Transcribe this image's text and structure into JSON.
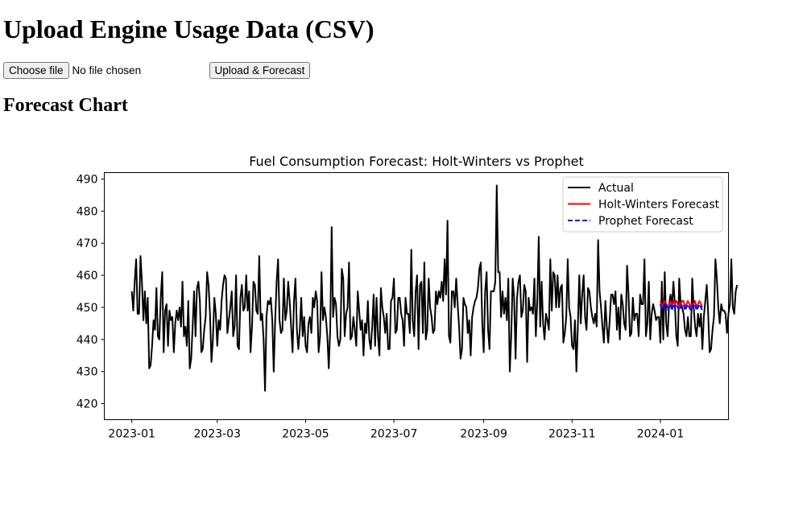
{
  "page": {
    "title": "Upload Engine Usage Data (CSV)",
    "choose_file_label": "Choose file",
    "file_status": "No file chosen",
    "upload_button_label": "Upload & Forecast",
    "section_title": "Forecast Chart"
  },
  "colors": {
    "actual": "#000000",
    "holt_winters": "#ff0000",
    "prophet": "#0000ff"
  },
  "chart_data": {
    "type": "line",
    "title": "Fuel Consumption Forecast: Holt-Winters vs Prophet",
    "xlabel": "",
    "ylabel": "",
    "x_type": "date",
    "xlim": [
      "2022-12-13",
      "2024-02-17"
    ],
    "ylim": [
      415,
      492
    ],
    "x_ticks": [
      "2023-01",
      "2023-03",
      "2023-05",
      "2023-07",
      "2023-09",
      "2023-11",
      "2024-01"
    ],
    "y_ticks": [
      420,
      430,
      440,
      450,
      460,
      470,
      480,
      490
    ],
    "legend_position": "top-right",
    "grid": false,
    "series": [
      {
        "name": "Actual",
        "style": "solid",
        "start": "2023-01-01",
        "step_days": 1,
        "values": [
          455,
          449,
          458,
          465,
          448,
          448,
          466,
          458,
          446,
          455,
          445,
          453,
          431,
          432,
          438,
          446,
          443,
          456,
          441,
          440,
          453,
          461,
          436,
          449,
          451,
          438,
          449,
          446,
          447,
          436,
          445,
          449,
          446,
          450,
          444,
          458,
          441,
          444,
          438,
          452,
          431,
          434,
          444,
          455,
          441,
          456,
          458,
          452,
          436,
          437,
          443,
          447,
          461,
          457,
          448,
          433,
          440,
          453,
          448,
          438,
          446,
          443,
          452,
          457,
          460,
          459,
          442,
          446,
          450,
          455,
          441,
          444,
          460,
          438,
          437,
          453,
          457,
          449,
          450,
          460,
          449,
          455,
          436,
          444,
          458,
          457,
          449,
          448,
          466,
          446,
          448,
          440,
          424,
          447,
          452,
          451,
          453,
          446,
          430,
          446,
          458,
          465,
          446,
          442,
          443,
          459,
          446,
          449,
          458,
          452,
          444,
          436,
          452,
          459,
          443,
          437,
          443,
          453,
          441,
          447,
          438,
          436,
          445,
          447,
          442,
          453,
          450,
          455,
          452,
          436,
          441,
          461,
          446,
          450,
          447,
          441,
          431,
          443,
          475,
          447,
          453,
          451,
          441,
          438,
          440,
          462,
          459,
          441,
          448,
          450,
          464,
          440,
          441,
          447,
          443,
          438,
          455,
          449,
          443,
          446,
          435,
          445,
          442,
          452,
          440,
          437,
          444,
          454,
          438,
          453,
          441,
          435,
          456,
          450,
          447,
          442,
          448,
          437,
          437,
          452,
          453,
          459,
          442,
          443,
          453,
          453,
          448,
          446,
          438,
          453,
          448,
          448,
          442,
          468,
          446,
          441,
          455,
          460,
          437,
          457,
          458,
          442,
          464,
          440,
          443,
          459,
          450,
          447,
          442,
          443,
          455,
          451,
          455,
          453,
          458,
          452,
          465,
          454,
          477,
          441,
          439,
          455,
          455,
          450,
          459,
          451,
          444,
          434,
          437,
          453,
          451,
          450,
          442,
          446,
          435,
          447,
          450,
          452,
          453,
          456,
          462,
          464,
          445,
          436,
          455,
          461,
          443,
          437,
          455,
          455,
          455,
          458,
          488,
          461,
          461,
          447,
          455,
          448,
          453,
          446,
          459,
          430,
          441,
          459,
          453,
          434,
          453,
          458,
          460,
          447,
          449,
          457,
          455,
          433,
          453,
          449,
          450,
          448,
          459,
          441,
          452,
          472,
          444,
          458,
          445,
          440,
          448,
          446,
          443,
          465,
          449,
          461,
          460,
          450,
          460,
          450,
          456,
          457,
          439,
          442,
          447,
          465,
          450,
          447,
          438,
          437,
          446,
          430,
          444,
          460,
          445,
          454,
          460,
          447,
          443,
          456,
          455,
          450,
          447,
          445,
          448,
          444,
          471,
          455,
          450,
          444,
          439,
          452,
          444,
          439,
          446,
          454,
          454,
          451,
          455,
          443,
          450,
          440,
          454,
          451,
          445,
          443,
          463,
          454,
          441,
          442,
          453,
          446,
          448,
          448,
          441,
          454,
          451,
          451,
          465,
          441,
          445,
          458,
          440,
          448,
          451,
          449,
          446,
          447,
          447,
          439,
          458,
          440,
          461,
          445,
          441,
          451,
          454,
          450,
          458,
          451,
          441,
          438,
          459,
          451,
          450,
          448,
          443,
          441,
          447,
          441,
          441,
          459,
          450,
          444,
          441,
          448,
          444,
          448,
          437,
          447,
          452,
          457,
          448,
          436,
          437,
          443,
          447,
          465,
          459,
          450,
          445,
          451,
          449,
          449,
          448,
          442,
          448,
          451,
          465,
          450,
          448,
          455,
          457
        ]
      },
      {
        "name": "Holt-Winters Forecast",
        "style": "solid",
        "start": "2024-01-01",
        "step_days": 1,
        "values": [
          452,
          450,
          451,
          452,
          451,
          450,
          451,
          452,
          450,
          452,
          451,
          452,
          451,
          450,
          451,
          452,
          452,
          450,
          451,
          452,
          451,
          450,
          451,
          451,
          452,
          450,
          451,
          452,
          451,
          450
        ]
      },
      {
        "name": "Prophet Forecast",
        "style": "dashed",
        "start": "2024-01-01",
        "step_days": 1,
        "values": [
          451,
          449,
          450,
          451,
          451,
          449,
          450,
          451,
          449,
          451,
          450,
          451,
          450,
          449,
          450,
          451,
          451,
          449,
          450,
          451,
          450,
          449,
          450,
          451,
          451,
          449,
          450,
          451,
          450,
          449
        ]
      }
    ]
  }
}
